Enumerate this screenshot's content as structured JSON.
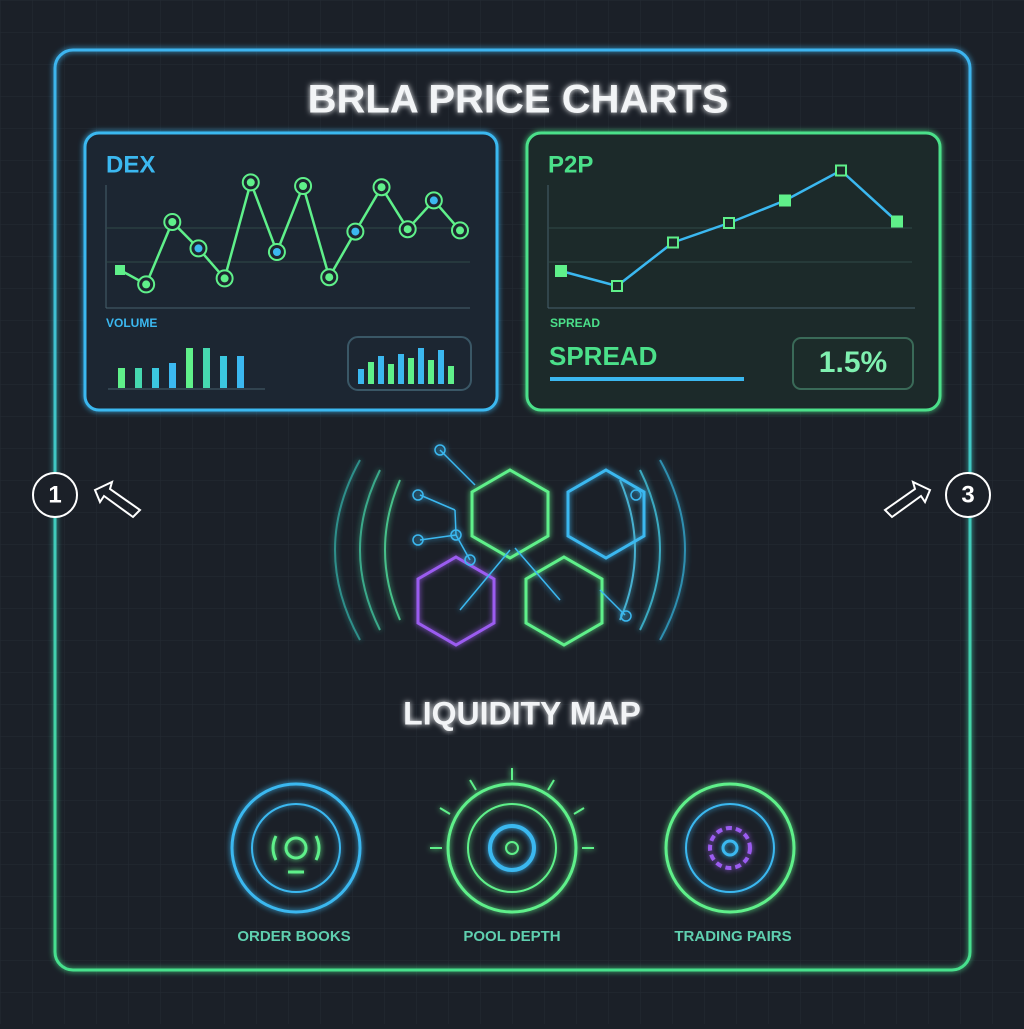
{
  "header": {
    "title": "BRLA PRICE CHARTS"
  },
  "dex": {
    "label": "DEX",
    "line": [
      25,
      13,
      65,
      43,
      18,
      98,
      40,
      95,
      19,
      57,
      94,
      59,
      83,
      58
    ],
    "volume_label": "VOLUME",
    "volume": [
      20,
      20,
      20,
      25,
      40,
      40,
      32,
      32
    ],
    "mini_volume": [
      15,
      22,
      28,
      20,
      30,
      26,
      36,
      24,
      34,
      18
    ]
  },
  "p2p": {
    "label": "P2P",
    "line": [
      26,
      16,
      45,
      58,
      73,
      93,
      59
    ],
    "axis_label": "SPREAD",
    "spread_label": "SPREAD",
    "spread_value": "1.5%"
  },
  "map": {
    "title": "LIQUIDITY MAP"
  },
  "nav": {
    "prev": "1",
    "next": "3"
  },
  "features": [
    "ORDER BOOKS",
    "POOL DEPTH",
    "TRADING PAIRS"
  ]
}
